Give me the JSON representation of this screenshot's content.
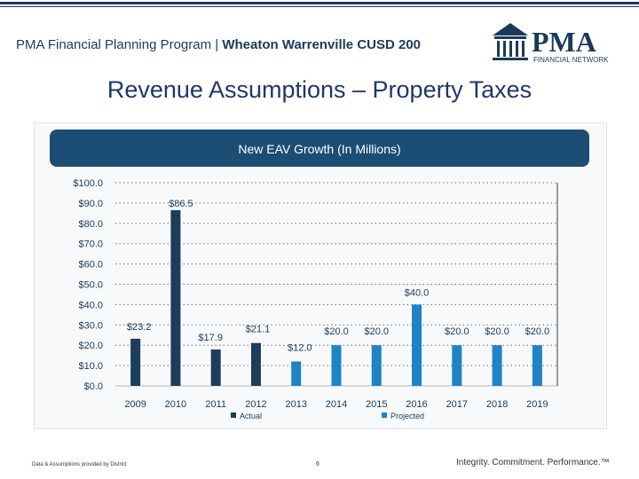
{
  "header": {
    "program": "PMA Financial Planning Program | ",
    "district": "Wheaton Warrenville CUSD 200",
    "logo_text": "PMA",
    "logo_sub": "FINANCIAL NETWORK"
  },
  "slide": {
    "title": "Revenue Assumptions – Property Taxes"
  },
  "colors": {
    "navy": "#1b3a5a",
    "actual": "#1c3d5c",
    "projected": "#1f83c4",
    "banner": "#1c4d74"
  },
  "chart_data": {
    "type": "bar",
    "title": "New EAV Growth (In Millions)",
    "categories": [
      "2009",
      "2010",
      "2011",
      "2012",
      "2013",
      "2014",
      "2015",
      "2016",
      "2017",
      "2018",
      "2019"
    ],
    "values": [
      23.2,
      86.5,
      17.9,
      21.1,
      12.0,
      20.0,
      20.0,
      40.0,
      20.0,
      20.0,
      20.0
    ],
    "value_labels": [
      "$23.2",
      "$86.5",
      "$17.9",
      "$21.1",
      "$12.0",
      "$20.0",
      "$20.0",
      "$40.0",
      "$20.0",
      "$20.0",
      "$20.0"
    ],
    "status": [
      "Actual",
      "Actual",
      "Actual",
      "Actual",
      "Projected",
      "Projected",
      "Projected",
      "Projected",
      "Projected",
      "Projected",
      "Projected"
    ],
    "y_ticks": [
      "$0.0",
      "$10.0",
      "$20.0",
      "$30.0",
      "$40.0",
      "$50.0",
      "$60.0",
      "$70.0",
      "$80.0",
      "$90.0",
      "$100.0"
    ],
    "ylim": [
      0,
      100
    ],
    "legend": [
      {
        "name": "Actual",
        "color": "#1c3d5c"
      },
      {
        "name": "Projected",
        "color": "#1f83c4"
      }
    ],
    "grid": true
  },
  "footer": {
    "source": "Data & Assumptions provided by District",
    "page": "6",
    "tagline": "Integrity. Commitment. Performance.™"
  }
}
